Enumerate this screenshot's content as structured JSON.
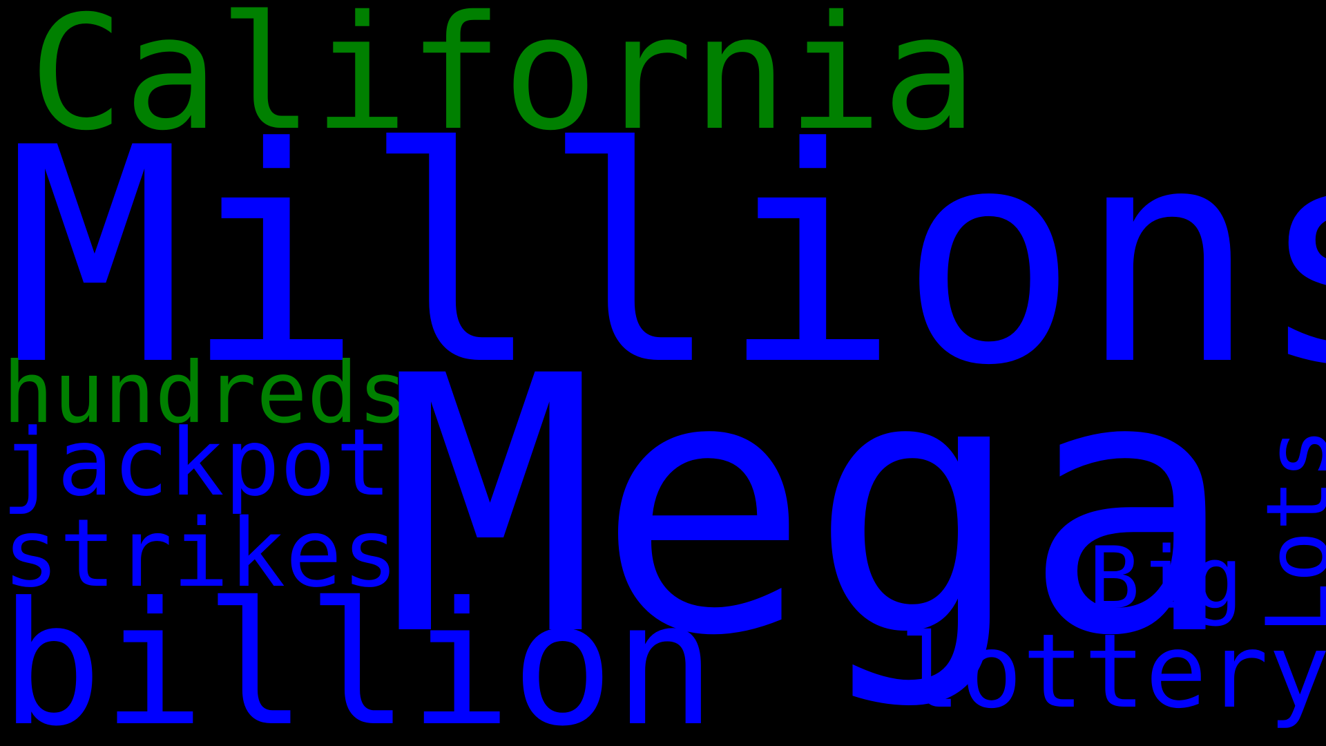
{
  "colors": {
    "background": "#000000",
    "green": "#008000",
    "blue": "#0000ff"
  },
  "words": {
    "california": "California",
    "millions": "Millions",
    "hundreds": "hundreds",
    "jackpot": "jackpot",
    "strikes": "strikes",
    "billion": "billion",
    "mega": "Mega",
    "big": "Big",
    "lottery": "lottery",
    "lots": "Lots"
  }
}
